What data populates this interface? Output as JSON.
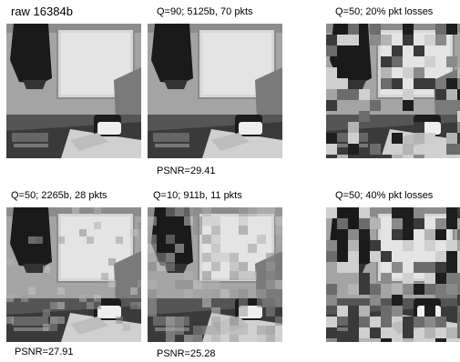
{
  "figure": {
    "panels": [
      {
        "title": "raw 16384b",
        "psnr": ""
      },
      {
        "title": "Q=90; 5125b, 70 pkts",
        "psnr": "PSNR=29.41"
      },
      {
        "title": "Q=50; 20% pkt losses",
        "psnr": ""
      },
      {
        "title": "Q=50; 2265b, 28 pkts",
        "psnr": "PSNR=27.91"
      },
      {
        "title": "Q=10; 911b, 11 pkts",
        "psnr": "PSNR=25.28"
      },
      {
        "title": "Q=50; 40% pkt losses",
        "psnr": ""
      }
    ]
  }
}
